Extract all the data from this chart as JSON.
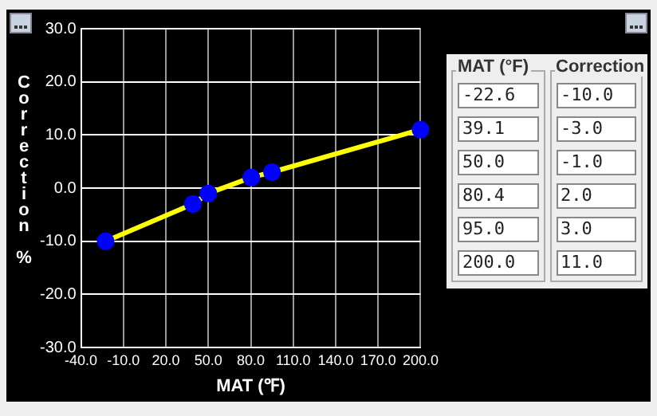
{
  "chart_data": {
    "type": "line",
    "xlabel": "MAT (℉)",
    "ylabel": "Correction %",
    "x": [
      -22.6,
      39.1,
      50,
      80.4,
      95,
      200
    ],
    "series": [
      {
        "color": "#ffff00",
        "colors": [
          "#0000ff",
          "#0000ff",
          "#0000ff",
          "#0000ff",
          "#0000ff",
          "#0000ff"
        ],
        "values": [
          -10,
          -3,
          -1,
          2,
          3,
          11
        ]
      }
    ],
    "xlim": [
      -40,
      200
    ],
    "xticks": [
      {
        "value": -40,
        "label": "-40.0"
      },
      {
        "value": -10,
        "label": "-10.0"
      },
      {
        "value": 20,
        "label": "20.0"
      },
      {
        "value": 50,
        "label": "50.0"
      },
      {
        "value": 80,
        "label": "80.0"
      },
      {
        "value": 110,
        "label": "110.0"
      },
      {
        "value": 140,
        "label": "140.0"
      },
      {
        "value": 170,
        "label": "170.0"
      },
      {
        "value": 200,
        "label": "200.0"
      }
    ],
    "ylim": [
      -30,
      30
    ],
    "yticks": [
      {
        "value": -30,
        "label": "-30.0"
      },
      {
        "value": -20,
        "label": "-20.0"
      },
      {
        "value": -10,
        "label": "-10.0"
      },
      {
        "value": 0,
        "label": "0.0"
      },
      {
        "value": 10,
        "label": "10.0"
      },
      {
        "value": 20,
        "label": "20.0"
      },
      {
        "value": 30,
        "label": "30.0"
      }
    ],
    "grid": true,
    "marker": "circle",
    "line_style": "solid",
    "annotations": [
      "MAT (°F)",
      "Correction",
      "-22.6",
      "-10.0",
      "39.1",
      "-3.0",
      "50.0",
      "-1.0",
      "80.4",
      "2.0",
      "95.0",
      "3.0",
      "200.0",
      "11.0"
    ]
  }
}
